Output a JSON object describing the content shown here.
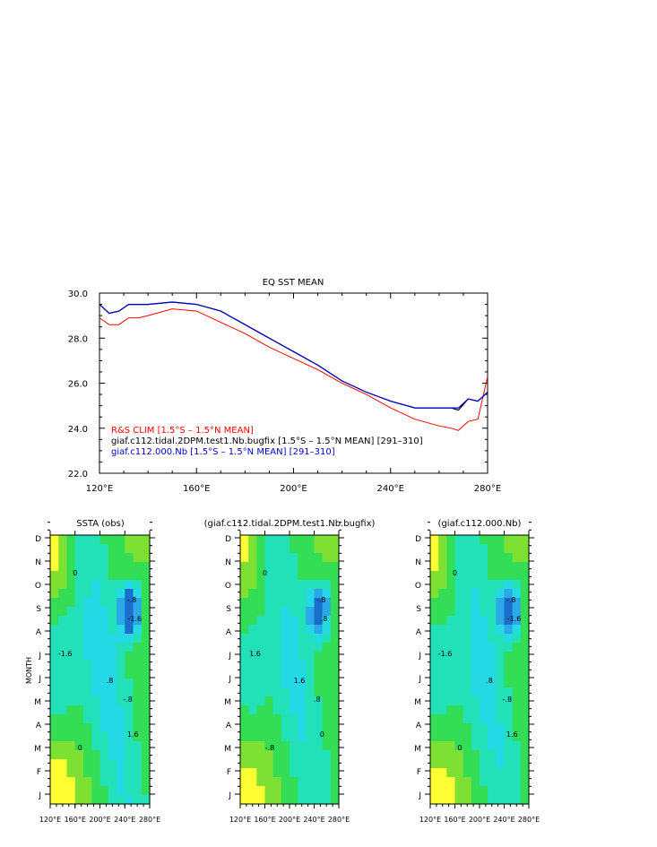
{
  "chart_data": [
    {
      "type": "line",
      "title": "EQ SST MEAN",
      "xlabel": "",
      "ylabel": "",
      "xlim": [
        120,
        280
      ],
      "ylim": [
        22,
        30
      ],
      "x_tick_labels": [
        "120°E",
        "160°E",
        "200°E",
        "240°E",
        "280°E"
      ],
      "x_ticks": [
        120,
        160,
        200,
        240,
        280
      ],
      "y_tick_labels": [
        "22.0",
        "24.0",
        "26.0",
        "28.0",
        "30.0"
      ],
      "y_ticks": [
        22,
        24,
        26,
        28,
        30
      ],
      "x": [
        120,
        124,
        128,
        132,
        136,
        140,
        150,
        160,
        170,
        180,
        190,
        200,
        210,
        220,
        230,
        240,
        250,
        260,
        265,
        268,
        272,
        276,
        280
      ],
      "series": [
        {
          "name": "R&S CLIM [1.5°S – 1.5°N MEAN]",
          "color": "#ff0000",
          "values": [
            28.9,
            28.6,
            28.6,
            28.9,
            28.9,
            29.0,
            29.3,
            29.2,
            28.7,
            28.2,
            27.6,
            27.1,
            26.6,
            26.0,
            25.5,
            24.9,
            24.4,
            24.1,
            24.0,
            23.9,
            24.3,
            24.4,
            26.3
          ]
        },
        {
          "name": "giaf.c112.tidal.2DPM.test1.Nb.bugfix [1.5°S – 1.5°N MEAN] [291–310]",
          "color": "#000000",
          "values": [
            29.5,
            29.1,
            29.2,
            29.5,
            29.5,
            29.5,
            29.6,
            29.5,
            29.2,
            28.6,
            28.0,
            27.4,
            26.8,
            26.1,
            25.6,
            25.2,
            24.9,
            24.9,
            24.9,
            24.8,
            25.3,
            25.2,
            25.6
          ]
        },
        {
          "name": "giaf.c112.000.Nb [1.5°S – 1.5°N MEAN] [291–310]",
          "color": "#0000cc",
          "values": [
            29.5,
            29.1,
            29.2,
            29.5,
            29.5,
            29.5,
            29.6,
            29.5,
            29.2,
            28.6,
            28.0,
            27.4,
            26.8,
            26.1,
            25.6,
            25.2,
            24.9,
            24.9,
            24.9,
            24.9,
            25.3,
            25.2,
            25.6
          ]
        }
      ]
    },
    {
      "type": "heatmap",
      "title": "SSTA (obs)",
      "ylabel": "MONTH",
      "xlim": [
        120,
        280
      ],
      "x_tick_labels": [
        "120°E",
        "160°E",
        "200°E",
        "240°E",
        "280°E"
      ],
      "y_tick_labels": [
        "J",
        "F",
        "M",
        "A",
        "M",
        "J",
        "J",
        "A",
        "S",
        "O",
        "N",
        "D"
      ],
      "contour_labels": [
        "0",
        "-.8",
        "-1.6",
        ".8",
        "1.6"
      ],
      "colors": [
        "#1a6fcc",
        "#2aa8e8",
        "#25d8e6",
        "#22e0b8",
        "#33dd55",
        "#7ee032",
        "#ffff33",
        "#ffb23a",
        "#ff8844"
      ]
    },
    {
      "type": "heatmap",
      "title": "(giaf.c112.tidal.2DPM.test1.Nb.bugfix)",
      "xlim": [
        120,
        280
      ],
      "x_tick_labels": [
        "120°E",
        "160°E",
        "200°E",
        "240°E",
        "280°E"
      ],
      "contour_labels": [
        "0",
        "-.8",
        ".8",
        "1.6"
      ]
    },
    {
      "type": "heatmap",
      "title": "(giaf.c112.000.Nb)",
      "xlim": [
        120,
        280
      ],
      "x_tick_labels": [
        "120°E",
        "160°E",
        "200°E",
        "240°E",
        "280°E"
      ],
      "contour_labels": [
        "0",
        "-.8",
        "-1.6",
        ".8",
        "1.6"
      ]
    }
  ]
}
